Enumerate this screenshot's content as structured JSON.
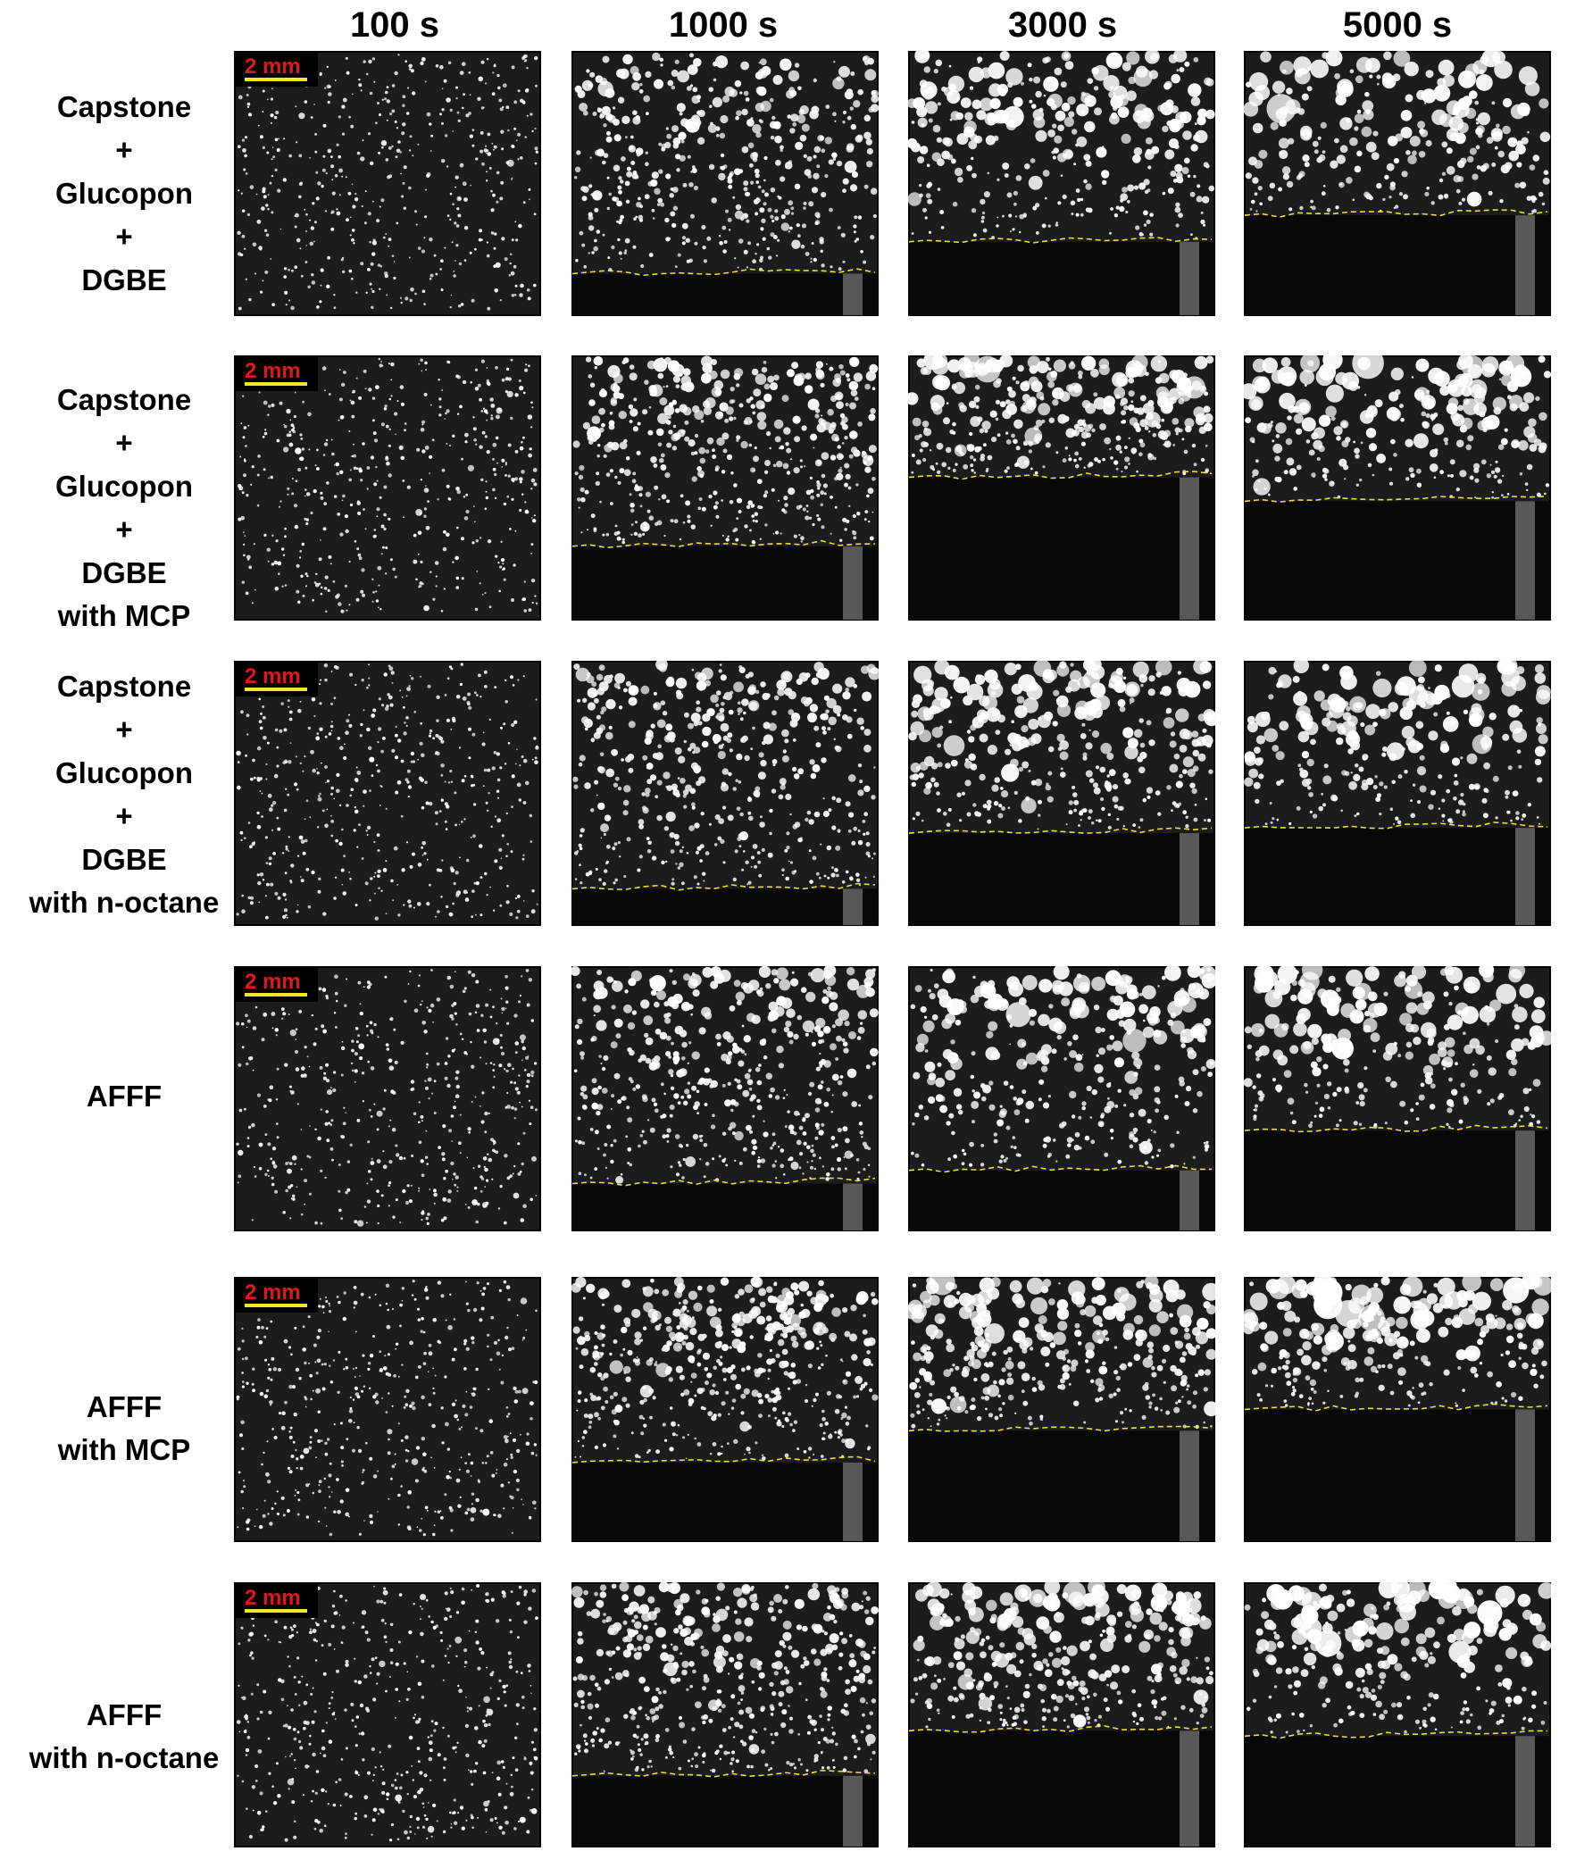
{
  "columns": [
    "100 s",
    "1000 s",
    "3000 s",
    "5000 s"
  ],
  "rows": [
    {
      "label": [
        "Capstone",
        "+",
        "Glucopon",
        "+",
        "DGBE"
      ]
    },
    {
      "label": [
        "Capstone",
        "+",
        "Glucopon",
        "+",
        "DGBE",
        "with MCP"
      ]
    },
    {
      "label": [
        "Capstone",
        "+",
        "Glucopon",
        "+",
        "DGBE",
        "with n-octane"
      ]
    },
    {
      "label": [
        "AFFF"
      ]
    },
    {
      "label": [
        "AFFF",
        "with MCP"
      ]
    },
    {
      "label": [
        "AFFF",
        "with n-octane"
      ]
    }
  ],
  "scale_bar": {
    "text": "2 mm",
    "text_color": "#e01818",
    "bar_color": "#f2e52a"
  },
  "colors": {
    "panel_background": "#1c1c1c",
    "bubble": "#ffffff",
    "liquid_front": "#e8e040",
    "panel_border": "#000000"
  }
}
